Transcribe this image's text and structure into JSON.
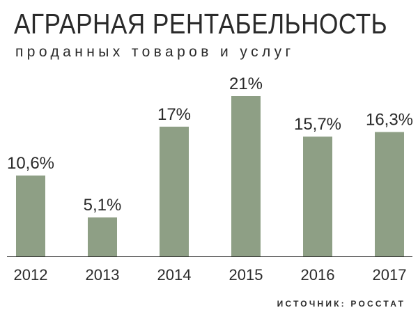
{
  "header": {
    "title": "АГРАРНАЯ РЕНТАБЕЛЬНОСТЬ",
    "subtitle": "проданных товаров и услуг"
  },
  "footer": {
    "source": "ИСТОЧНИК: РОССТАТ"
  },
  "colors": {
    "bar": "#8e9f85",
    "text": "#2a2a2a",
    "background": "#ffffff"
  },
  "chart_data": {
    "type": "bar",
    "title": "АГРАРНАЯ РЕНТАБЕЛЬНОСТЬ",
    "subtitle": "проданных товаров и услуг",
    "categories": [
      "2012",
      "2013",
      "2014",
      "2015",
      "2016",
      "2017"
    ],
    "values": [
      10.6,
      5.1,
      17,
      21,
      15.7,
      16.3
    ],
    "value_labels": [
      "10,6%",
      "5,1%",
      "17%",
      "21%",
      "15,7%",
      "16,3%"
    ],
    "xlabel": "",
    "ylabel": "",
    "ylim": [
      0,
      21
    ],
    "grid": false,
    "legend": "none"
  }
}
